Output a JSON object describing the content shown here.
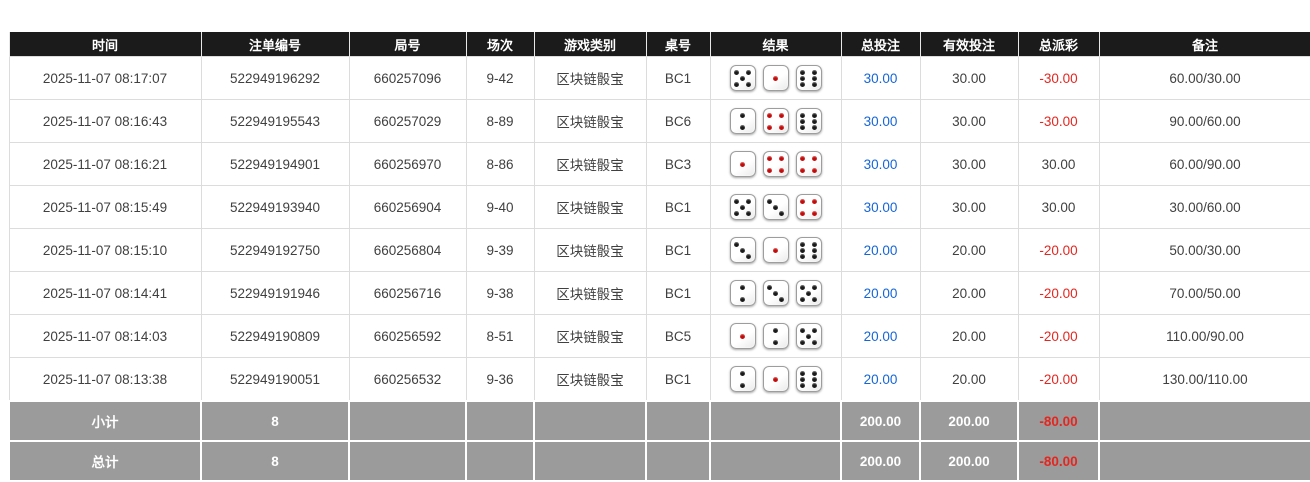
{
  "table": {
    "columns": [
      {
        "key": "time",
        "label": "时间"
      },
      {
        "key": "bet_id",
        "label": "注单编号"
      },
      {
        "key": "round_id",
        "label": "局号"
      },
      {
        "key": "session",
        "label": "场次"
      },
      {
        "key": "game_type",
        "label": "游戏类别"
      },
      {
        "key": "table_no",
        "label": "桌号"
      },
      {
        "key": "result",
        "label": "结果"
      },
      {
        "key": "total_bet",
        "label": "总投注"
      },
      {
        "key": "valid_bet",
        "label": "有效投注"
      },
      {
        "key": "total_payout",
        "label": "总派彩"
      },
      {
        "key": "remark",
        "label": "备注"
      }
    ],
    "rows": [
      {
        "time": "2025-11-07 08:17:07",
        "bet_id": "522949196292",
        "round_id": "660257096",
        "session": "9-42",
        "game_type": "区块链骰宝",
        "table_no": "BC1",
        "dice": [
          5,
          1,
          6
        ],
        "total_bet": "30.00",
        "valid_bet": "30.00",
        "total_payout": "-30.00",
        "remark": "60.00/30.00"
      },
      {
        "time": "2025-11-07 08:16:43",
        "bet_id": "522949195543",
        "round_id": "660257029",
        "session": "8-89",
        "game_type": "区块链骰宝",
        "table_no": "BC6",
        "dice": [
          2,
          4,
          6
        ],
        "total_bet": "30.00",
        "valid_bet": "30.00",
        "total_payout": "-30.00",
        "remark": "90.00/60.00"
      },
      {
        "time": "2025-11-07 08:16:21",
        "bet_id": "522949194901",
        "round_id": "660256970",
        "session": "8-86",
        "game_type": "区块链骰宝",
        "table_no": "BC3",
        "dice": [
          1,
          4,
          4
        ],
        "total_bet": "30.00",
        "valid_bet": "30.00",
        "total_payout": "30.00",
        "remark": "60.00/90.00"
      },
      {
        "time": "2025-11-07 08:15:49",
        "bet_id": "522949193940",
        "round_id": "660256904",
        "session": "9-40",
        "game_type": "区块链骰宝",
        "table_no": "BC1",
        "dice": [
          5,
          3,
          4
        ],
        "total_bet": "30.00",
        "valid_bet": "30.00",
        "total_payout": "30.00",
        "remark": "30.00/60.00"
      },
      {
        "time": "2025-11-07 08:15:10",
        "bet_id": "522949192750",
        "round_id": "660256804",
        "session": "9-39",
        "game_type": "区块链骰宝",
        "table_no": "BC1",
        "dice": [
          3,
          1,
          6
        ],
        "total_bet": "20.00",
        "valid_bet": "20.00",
        "total_payout": "-20.00",
        "remark": "50.00/30.00"
      },
      {
        "time": "2025-11-07 08:14:41",
        "bet_id": "522949191946",
        "round_id": "660256716",
        "session": "9-38",
        "game_type": "区块链骰宝",
        "table_no": "BC1",
        "dice": [
          2,
          3,
          5
        ],
        "total_bet": "20.00",
        "valid_bet": "20.00",
        "total_payout": "-20.00",
        "remark": "70.00/50.00"
      },
      {
        "time": "2025-11-07 08:14:03",
        "bet_id": "522949190809",
        "round_id": "660256592",
        "session": "8-51",
        "game_type": "区块链骰宝",
        "table_no": "BC5",
        "dice": [
          1,
          2,
          5
        ],
        "total_bet": "20.00",
        "valid_bet": "20.00",
        "total_payout": "-20.00",
        "remark": "110.00/90.00"
      },
      {
        "time": "2025-11-07 08:13:38",
        "bet_id": "522949190051",
        "round_id": "660256532",
        "session": "9-36",
        "game_type": "区块链骰宝",
        "table_no": "BC1",
        "dice": [
          2,
          1,
          6
        ],
        "total_bet": "20.00",
        "valid_bet": "20.00",
        "total_payout": "-20.00",
        "remark": "130.00/110.00"
      }
    ],
    "summary_rows": [
      {
        "label": "小计",
        "count": "8",
        "total_bet": "200.00",
        "valid_bet": "200.00",
        "total_payout": "-80.00",
        "remark": ""
      },
      {
        "label": "总计",
        "count": "8",
        "total_bet": "200.00",
        "valid_bet": "200.00",
        "total_payout": "-80.00",
        "remark": ""
      }
    ]
  },
  "dice": {
    "red_pip_values": [
      1,
      4
    ]
  },
  "colors": {
    "header_bg": "#1b1b1b",
    "header_text": "#ffffff",
    "bet_blue": "#1565d8",
    "negative_red": "#e5261f",
    "summary_bg": "#9b9b9b",
    "dice_black_pip": "#1a1a1a",
    "dice_red_pip": "#c40b0b"
  }
}
